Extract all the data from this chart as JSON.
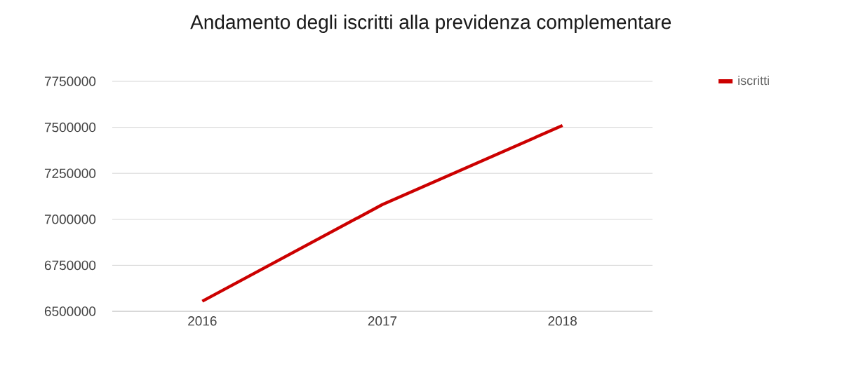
{
  "chart_data": {
    "type": "line",
    "title": "Andamento degli iscritti alla previdenza complementare",
    "categories": [
      "2016",
      "2017",
      "2018"
    ],
    "series": [
      {
        "name": "iscritti",
        "color": "#cc0000",
        "values": [
          6555000,
          7080000,
          7510000
        ]
      }
    ],
    "ylim": [
      6500000,
      7750000
    ],
    "yticks": [
      6500000,
      6750000,
      7000000,
      7250000,
      7500000,
      7750000
    ],
    "grid": "y",
    "legend": "top right",
    "marker": "none",
    "line_style": "solid"
  }
}
